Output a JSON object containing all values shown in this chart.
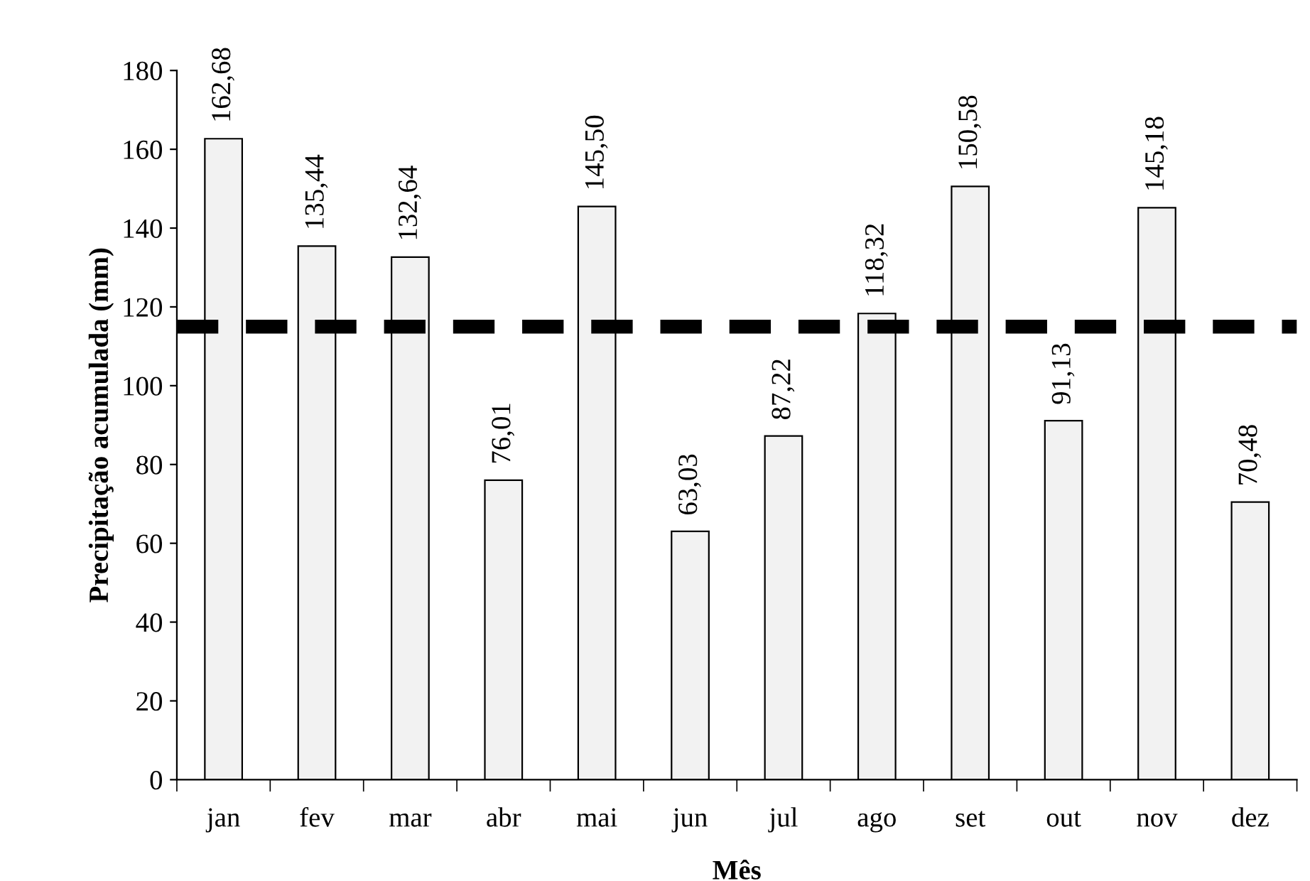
{
  "chart_data": {
    "type": "bar",
    "xlabel": "Mês",
    "ylabel": "Precipitação acumulada (mm)",
    "categories": [
      "jan",
      "fev",
      "mar",
      "abr",
      "mai",
      "jun",
      "jul",
      "ago",
      "set",
      "out",
      "nov",
      "dez"
    ],
    "values": [
      162.68,
      135.44,
      132.64,
      76.01,
      145.5,
      63.03,
      87.22,
      118.32,
      150.58,
      91.13,
      145.18,
      70.48
    ],
    "value_labels": [
      "162,68",
      "135,44",
      "132,64",
      "76,01",
      "145,50",
      "63,03",
      "87,22",
      "118,32",
      "150,58",
      "91,13",
      "145,18",
      "70,48"
    ],
    "color": "#f2f2f2",
    "ylim": [
      0,
      180
    ],
    "yticks": [
      0,
      20,
      40,
      60,
      80,
      100,
      120,
      140,
      160,
      180
    ],
    "ref_lines": [
      {
        "axis": "y",
        "value": 115,
        "label": null,
        "color": "#000000",
        "line_style": "dashed"
      }
    ],
    "grid": false,
    "legend": false
  }
}
